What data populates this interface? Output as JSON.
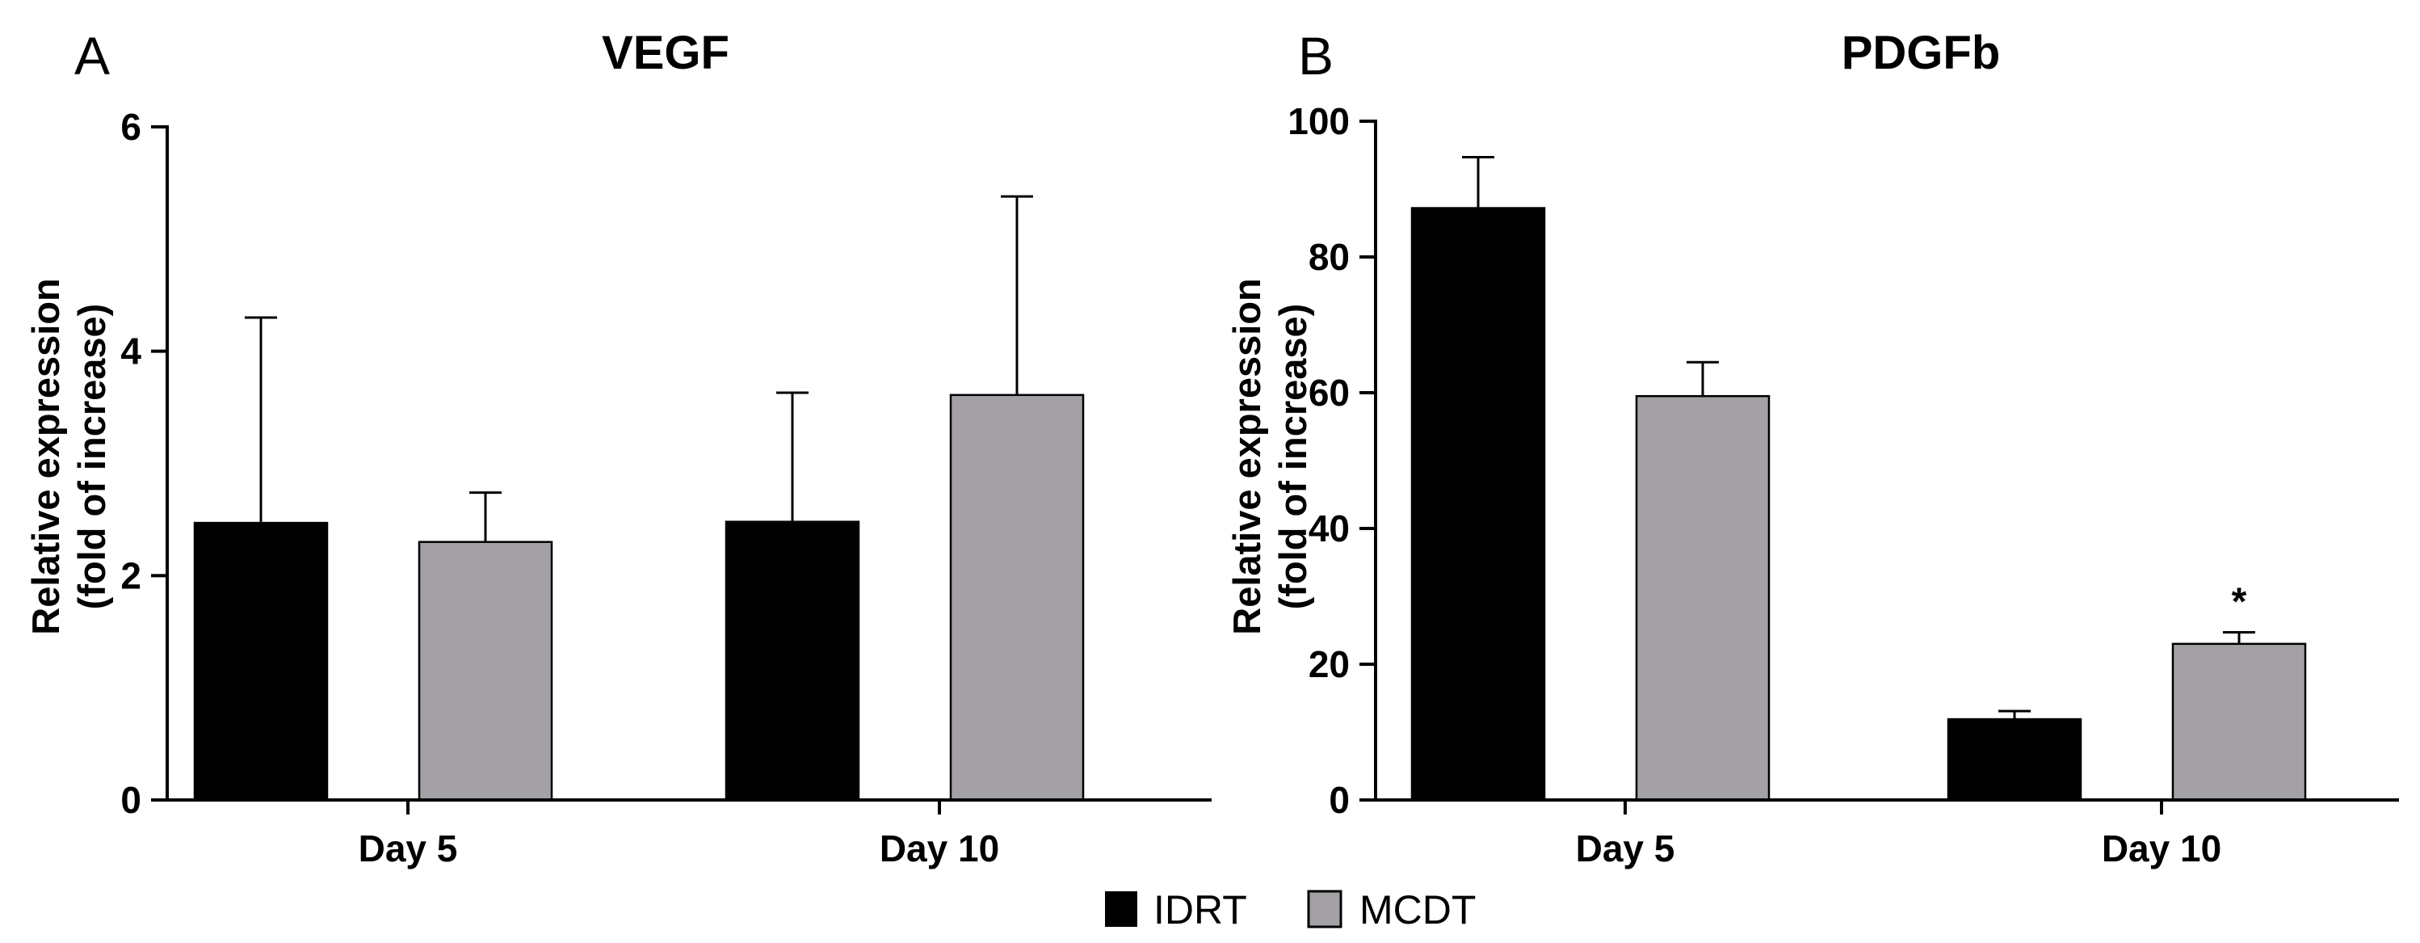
{
  "legend": [
    {
      "name": "IDRT",
      "color": "#000000"
    },
    {
      "name": "MCDT",
      "color": "#a3a1a6"
    }
  ],
  "chart_data": [
    {
      "type": "bar",
      "panel": "A",
      "title": "VEGF",
      "ylabel_line1": "Relative expression",
      "ylabel_line2": "(fold of increase)",
      "xlabel": "",
      "categories": [
        "Day 5",
        "Day 10"
      ],
      "ylim": [
        0,
        6
      ],
      "yticks": [
        0,
        2,
        4,
        6
      ],
      "grid": false,
      "series": [
        {
          "name": "IDRT",
          "values": [
            2.47,
            2.48
          ],
          "errors": [
            1.83,
            1.15
          ]
        },
        {
          "name": "MCDT",
          "values": [
            2.3,
            3.61
          ],
          "errors": [
            0.44,
            1.77
          ]
        }
      ],
      "annotations": []
    },
    {
      "type": "bar",
      "panel": "B",
      "title": "PDGFb",
      "ylabel_line1": "Relative expression",
      "ylabel_line2": "(fold of increase)",
      "xlabel": "",
      "categories": [
        "Day 5",
        "Day 10"
      ],
      "ylim": [
        0,
        100
      ],
      "yticks": [
        0,
        20,
        40,
        60,
        80,
        100
      ],
      "grid": false,
      "series": [
        {
          "name": "IDRT",
          "values": [
            87.2,
            11.9
          ],
          "errors": [
            7.5,
            1.2
          ]
        },
        {
          "name": "MCDT",
          "values": [
            59.5,
            23.0
          ],
          "errors": [
            5.0,
            1.7
          ]
        }
      ],
      "annotations": [
        {
          "category": "Day 10",
          "series": "MCDT",
          "text": "*"
        }
      ]
    }
  ]
}
